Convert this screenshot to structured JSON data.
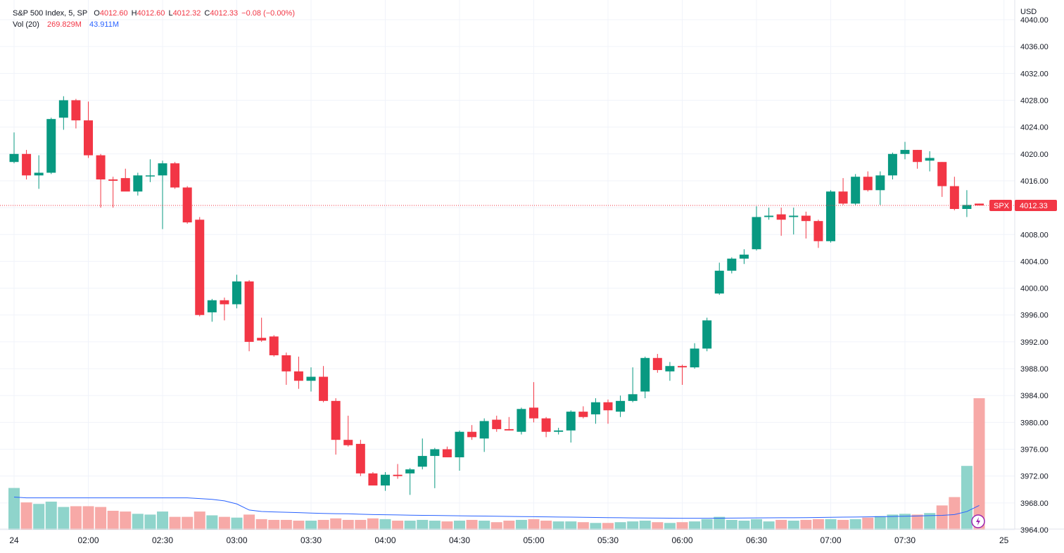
{
  "legend": {
    "symbol": "S&P 500 Index, 5, SP",
    "o_label": "O",
    "o_value": "4012.60",
    "h_label": "H",
    "h_value": "4012.60",
    "l_label": "L",
    "l_value": "4012.32",
    "c_label": "C",
    "c_value": "4012.33",
    "change": "−0.08 (−0.00%)",
    "vol_label": "Vol (20)",
    "vol_value": "269.829M",
    "vol_ma": "43.911M"
  },
  "currency": "USD",
  "last_price_tag": {
    "symbol": "SPX",
    "value": "4012.33"
  },
  "colors": {
    "up": "#089981",
    "down": "#f23645",
    "vol_up": "#8fd4cb",
    "vol_down": "#f7a9a7",
    "ma_line": "#2962ff",
    "grid": "#f0f3fa",
    "price_line": "#f23645"
  },
  "chart_data": {
    "type": "candlestick",
    "interval": "5",
    "y_ticks": [
      3964,
      3968,
      3972,
      3976,
      3980,
      3984,
      3988,
      3992,
      3996,
      4000,
      4004,
      4008,
      4012,
      4016,
      4020,
      4024,
      4028,
      4032,
      4036,
      4040
    ],
    "y_tick_labels": [
      "3964.00",
      "3968.00",
      "3972.00",
      "3976.00",
      "3980.00",
      "3984.00",
      "3988.00",
      "3992.00",
      "3996.00",
      "4000.00",
      "4004.00",
      "4008.00",
      "4012.00",
      "4016.00",
      "4020.00",
      "4024.00",
      "4028.00",
      "4032.00",
      "4036.00",
      "4040.00"
    ],
    "x_ticks": [
      {
        "label": "24",
        "at": "01:30"
      },
      {
        "label": "02:00",
        "at": "02:00"
      },
      {
        "label": "02:30",
        "at": "02:30"
      },
      {
        "label": "03:00",
        "at": "03:00"
      },
      {
        "label": "03:30",
        "at": "03:30"
      },
      {
        "label": "04:00",
        "at": "04:00"
      },
      {
        "label": "04:30",
        "at": "04:30"
      },
      {
        "label": "05:00",
        "at": "05:00"
      },
      {
        "label": "05:30",
        "at": "05:30"
      },
      {
        "label": "06:00",
        "at": "06:00"
      },
      {
        "label": "06:30",
        "at": "06:30"
      },
      {
        "label": "07:00",
        "at": "07:00"
      },
      {
        "label": "07:30",
        "at": "07:30"
      },
      {
        "label": "25",
        "at": "08:10"
      }
    ],
    "last_price": 4012.33,
    "candles": [
      {
        "t": "01:30",
        "o": 4018.8,
        "h": 4023.2,
        "l": 4018.6,
        "c": 4020.0,
        "v": 0.55
      },
      {
        "t": "01:35",
        "o": 4020.0,
        "h": 4020.6,
        "l": 4016.2,
        "c": 4016.8,
        "v": 0.36
      },
      {
        "t": "01:40",
        "o": 4016.8,
        "h": 4019.8,
        "l": 4014.8,
        "c": 4017.2,
        "v": 0.34
      },
      {
        "t": "01:45",
        "o": 4017.2,
        "h": 4025.4,
        "l": 4017.0,
        "c": 4025.2,
        "v": 0.37
      },
      {
        "t": "01:50",
        "o": 4025.4,
        "h": 4028.6,
        "l": 4023.6,
        "c": 4028.0,
        "v": 0.3
      },
      {
        "t": "01:55",
        "o": 4028.0,
        "h": 4028.2,
        "l": 4023.8,
        "c": 4025.0,
        "v": 0.31
      },
      {
        "t": "02:00",
        "o": 4025.0,
        "h": 4027.8,
        "l": 4019.4,
        "c": 4019.8,
        "v": 0.31
      },
      {
        "t": "02:05",
        "o": 4019.8,
        "h": 4020.0,
        "l": 4012.0,
        "c": 4016.2,
        "v": 0.3
      },
      {
        "t": "02:10",
        "o": 4016.2,
        "h": 4016.6,
        "l": 4012.0,
        "c": 4016.0,
        "v": 0.25
      },
      {
        "t": "02:15",
        "o": 4016.4,
        "h": 4017.8,
        "l": 4014.6,
        "c": 4014.4,
        "v": 0.24
      },
      {
        "t": "02:20",
        "o": 4014.4,
        "h": 4017.2,
        "l": 4013.8,
        "c": 4016.8,
        "v": 0.21
      },
      {
        "t": "02:25",
        "o": 4016.8,
        "h": 4019.2,
        "l": 4015.8,
        "c": 4016.8,
        "v": 0.2
      },
      {
        "t": "02:30",
        "o": 4016.8,
        "h": 4019.0,
        "l": 4008.8,
        "c": 4018.6,
        "v": 0.24
      },
      {
        "t": "02:35",
        "o": 4018.6,
        "h": 4018.8,
        "l": 4014.8,
        "c": 4015.0,
        "v": 0.17
      },
      {
        "t": "02:40",
        "o": 4015.0,
        "h": 4015.2,
        "l": 4009.6,
        "c": 4009.8,
        "v": 0.17
      },
      {
        "t": "02:45",
        "o": 4010.2,
        "h": 4010.6,
        "l": 3995.8,
        "c": 3996.0,
        "v": 0.24
      },
      {
        "t": "02:50",
        "o": 3996.4,
        "h": 3998.4,
        "l": 3995.0,
        "c": 3998.2,
        "v": 0.19
      },
      {
        "t": "02:55",
        "o": 3998.2,
        "h": 3998.6,
        "l": 3995.2,
        "c": 3997.6,
        "v": 0.17
      },
      {
        "t": "03:00",
        "o": 3997.6,
        "h": 4002.0,
        "l": 3997.0,
        "c": 4001.0,
        "v": 0.16
      },
      {
        "t": "03:05",
        "o": 4001.0,
        "h": 4001.2,
        "l": 3990.6,
        "c": 3992.0,
        "v": 0.2
      },
      {
        "t": "03:10",
        "o": 3992.6,
        "h": 3995.6,
        "l": 3992.0,
        "c": 3992.2,
        "v": 0.14
      },
      {
        "t": "03:15",
        "o": 3992.8,
        "h": 3993.0,
        "l": 3989.8,
        "c": 3990.0,
        "v": 0.13
      },
      {
        "t": "03:20",
        "o": 3990.0,
        "h": 3990.4,
        "l": 3985.6,
        "c": 3987.6,
        "v": 0.13
      },
      {
        "t": "03:25",
        "o": 3987.6,
        "h": 3989.8,
        "l": 3985.0,
        "c": 3986.2,
        "v": 0.12
      },
      {
        "t": "03:30",
        "o": 3986.2,
        "h": 3988.2,
        "l": 3984.6,
        "c": 3986.8,
        "v": 0.12
      },
      {
        "t": "03:35",
        "o": 3986.8,
        "h": 3988.4,
        "l": 3983.0,
        "c": 3983.2,
        "v": 0.13
      },
      {
        "t": "03:40",
        "o": 3983.2,
        "h": 3983.6,
        "l": 3975.2,
        "c": 3977.4,
        "v": 0.15
      },
      {
        "t": "03:45",
        "o": 3977.4,
        "h": 3981.0,
        "l": 3976.4,
        "c": 3976.6,
        "v": 0.13
      },
      {
        "t": "03:50",
        "o": 3976.8,
        "h": 3977.4,
        "l": 3972.0,
        "c": 3972.4,
        "v": 0.13
      },
      {
        "t": "03:55",
        "o": 3972.4,
        "h": 3972.6,
        "l": 3970.6,
        "c": 3970.6,
        "v": 0.15
      },
      {
        "t": "04:00",
        "o": 3970.6,
        "h": 3972.6,
        "l": 3969.8,
        "c": 3972.2,
        "v": 0.14
      },
      {
        "t": "04:05",
        "o": 3972.2,
        "h": 3973.8,
        "l": 3971.6,
        "c": 3972.0,
        "v": 0.12
      },
      {
        "t": "04:10",
        "o": 3972.4,
        "h": 3973.2,
        "l": 3969.2,
        "c": 3973.0,
        "v": 0.12
      },
      {
        "t": "04:15",
        "o": 3973.4,
        "h": 3977.6,
        "l": 3973.0,
        "c": 3975.0,
        "v": 0.13
      },
      {
        "t": "04:20",
        "o": 3975.0,
        "h": 3976.2,
        "l": 3970.2,
        "c": 3976.0,
        "v": 0.12
      },
      {
        "t": "04:25",
        "o": 3976.0,
        "h": 3976.4,
        "l": 3974.8,
        "c": 3974.8,
        "v": 0.11
      },
      {
        "t": "04:30",
        "o": 3974.8,
        "h": 3978.8,
        "l": 3972.8,
        "c": 3978.6,
        "v": 0.12
      },
      {
        "t": "04:35",
        "o": 3978.6,
        "h": 3979.6,
        "l": 3977.4,
        "c": 3977.8,
        "v": 0.13
      },
      {
        "t": "04:40",
        "o": 3977.6,
        "h": 3980.6,
        "l": 3975.6,
        "c": 3980.2,
        "v": 0.12
      },
      {
        "t": "04:45",
        "o": 3980.4,
        "h": 3981.0,
        "l": 3978.6,
        "c": 3979.0,
        "v": 0.1
      },
      {
        "t": "04:50",
        "o": 3979.0,
        "h": 3980.8,
        "l": 3978.8,
        "c": 3978.8,
        "v": 0.12
      },
      {
        "t": "04:55",
        "o": 3978.6,
        "h": 3982.2,
        "l": 3978.2,
        "c": 3982.0,
        "v": 0.13
      },
      {
        "t": "05:00",
        "o": 3982.2,
        "h": 3986.0,
        "l": 3980.0,
        "c": 3980.6,
        "v": 0.14
      },
      {
        "t": "05:05",
        "o": 3980.6,
        "h": 3980.8,
        "l": 3977.8,
        "c": 3978.6,
        "v": 0.12
      },
      {
        "t": "05:10",
        "o": 3978.6,
        "h": 3979.2,
        "l": 3978.2,
        "c": 3978.8,
        "v": 0.11
      },
      {
        "t": "05:15",
        "o": 3978.8,
        "h": 3981.8,
        "l": 3977.0,
        "c": 3981.6,
        "v": 0.11
      },
      {
        "t": "05:20",
        "o": 3981.6,
        "h": 3982.4,
        "l": 3980.6,
        "c": 3980.8,
        "v": 0.1
      },
      {
        "t": "05:25",
        "o": 3981.2,
        "h": 3983.6,
        "l": 3979.8,
        "c": 3983.0,
        "v": 0.09
      },
      {
        "t": "05:30",
        "o": 3983.0,
        "h": 3983.4,
        "l": 3979.8,
        "c": 3981.8,
        "v": 0.09
      },
      {
        "t": "05:35",
        "o": 3981.6,
        "h": 3984.0,
        "l": 3980.8,
        "c": 3983.2,
        "v": 0.1
      },
      {
        "t": "05:40",
        "o": 3983.2,
        "h": 3988.2,
        "l": 3983.0,
        "c": 3984.2,
        "v": 0.11
      },
      {
        "t": "05:45",
        "o": 3984.6,
        "h": 3989.8,
        "l": 3983.6,
        "c": 3989.6,
        "v": 0.12
      },
      {
        "t": "05:50",
        "o": 3989.6,
        "h": 3990.2,
        "l": 3987.4,
        "c": 3987.8,
        "v": 0.1
      },
      {
        "t": "05:55",
        "o": 3987.6,
        "h": 3989.0,
        "l": 3986.2,
        "c": 3988.4,
        "v": 0.09
      },
      {
        "t": "06:00",
        "o": 3988.4,
        "h": 3988.6,
        "l": 3985.6,
        "c": 3988.2,
        "v": 0.1
      },
      {
        "t": "06:05",
        "o": 3988.2,
        "h": 3991.8,
        "l": 3988.0,
        "c": 3991.0,
        "v": 0.11
      },
      {
        "t": "06:10",
        "o": 3991.0,
        "h": 3995.6,
        "l": 3990.6,
        "c": 3995.2,
        "v": 0.14
      },
      {
        "t": "06:15",
        "o": 3999.2,
        "h": 4003.8,
        "l": 3999.0,
        "c": 4002.6,
        "v": 0.17
      },
      {
        "t": "06:20",
        "o": 4002.6,
        "h": 4004.6,
        "l": 4002.2,
        "c": 4004.4,
        "v": 0.13
      },
      {
        "t": "06:25",
        "o": 4004.4,
        "h": 4005.8,
        "l": 4003.6,
        "c": 4005.0,
        "v": 0.12
      },
      {
        "t": "06:30",
        "o": 4005.8,
        "h": 4012.2,
        "l": 4005.6,
        "c": 4010.6,
        "v": 0.14
      },
      {
        "t": "06:35",
        "o": 4010.6,
        "h": 4012.0,
        "l": 4010.2,
        "c": 4010.8,
        "v": 0.11
      },
      {
        "t": "06:40",
        "o": 4011.0,
        "h": 4012.0,
        "l": 4007.8,
        "c": 4010.2,
        "v": 0.13
      },
      {
        "t": "06:45",
        "o": 4010.6,
        "h": 4012.0,
        "l": 4008.0,
        "c": 4010.8,
        "v": 0.12
      },
      {
        "t": "06:50",
        "o": 4010.8,
        "h": 4011.4,
        "l": 4007.4,
        "c": 4010.0,
        "v": 0.13
      },
      {
        "t": "06:55",
        "o": 4010.0,
        "h": 4010.2,
        "l": 4006.0,
        "c": 4007.0,
        "v": 0.14
      },
      {
        "t": "07:00",
        "o": 4007.0,
        "h": 4014.6,
        "l": 4006.8,
        "c": 4014.4,
        "v": 0.14
      },
      {
        "t": "07:05",
        "o": 4014.4,
        "h": 4016.4,
        "l": 4012.4,
        "c": 4012.6,
        "v": 0.13
      },
      {
        "t": "07:10",
        "o": 4012.6,
        "h": 4017.0,
        "l": 4012.4,
        "c": 4016.6,
        "v": 0.14
      },
      {
        "t": "07:15",
        "o": 4016.6,
        "h": 4017.4,
        "l": 4014.4,
        "c": 4014.6,
        "v": 0.16
      },
      {
        "t": "07:20",
        "o": 4014.6,
        "h": 4017.4,
        "l": 4012.4,
        "c": 4016.8,
        "v": 0.18
      },
      {
        "t": "07:25",
        "o": 4016.8,
        "h": 4020.2,
        "l": 4016.2,
        "c": 4020.0,
        "v": 0.2
      },
      {
        "t": "07:30",
        "o": 4020.0,
        "h": 4021.8,
        "l": 4019.2,
        "c": 4020.6,
        "v": 0.21
      },
      {
        "t": "07:35",
        "o": 4020.6,
        "h": 4020.6,
        "l": 4017.8,
        "c": 4018.8,
        "v": 0.2
      },
      {
        "t": "07:40",
        "o": 4019.0,
        "h": 4020.4,
        "l": 4017.4,
        "c": 4019.4,
        "v": 0.22
      },
      {
        "t": "07:45",
        "o": 4018.8,
        "h": 4018.8,
        "l": 4013.6,
        "c": 4015.2,
        "v": 0.32
      },
      {
        "t": "07:50",
        "o": 4015.2,
        "h": 4016.6,
        "l": 4011.6,
        "c": 4011.8,
        "v": 0.43
      },
      {
        "t": "07:55",
        "o": 4011.8,
        "h": 4014.6,
        "l": 4010.6,
        "c": 4012.4,
        "v": 0.84
      },
      {
        "t": "08:00",
        "o": 4012.6,
        "h": 4012.6,
        "l": 4012.32,
        "c": 4012.33,
        "v": 1.73
      }
    ],
    "volume_ma": [
      0.43,
      0.42,
      0.42,
      0.42,
      0.42,
      0.42,
      0.42,
      0.42,
      0.42,
      0.42,
      0.42,
      0.42,
      0.42,
      0.42,
      0.42,
      0.41,
      0.4,
      0.38,
      0.34,
      0.26,
      0.24,
      0.235,
      0.23,
      0.225,
      0.22,
      0.215,
      0.212,
      0.21,
      0.205,
      0.2,
      0.198,
      0.195,
      0.192,
      0.19,
      0.188,
      0.186,
      0.184,
      0.182,
      0.18,
      0.178,
      0.176,
      0.174,
      0.172,
      0.17,
      0.168,
      0.166,
      0.164,
      0.162,
      0.16,
      0.158,
      0.156,
      0.155,
      0.154,
      0.153,
      0.152,
      0.152,
      0.152,
      0.153,
      0.154,
      0.155,
      0.156,
      0.157,
      0.158,
      0.159,
      0.16,
      0.162,
      0.164,
      0.166,
      0.168,
      0.17,
      0.172,
      0.175,
      0.178,
      0.182,
      0.186,
      0.19,
      0.2,
      0.24,
      0.32
    ]
  }
}
